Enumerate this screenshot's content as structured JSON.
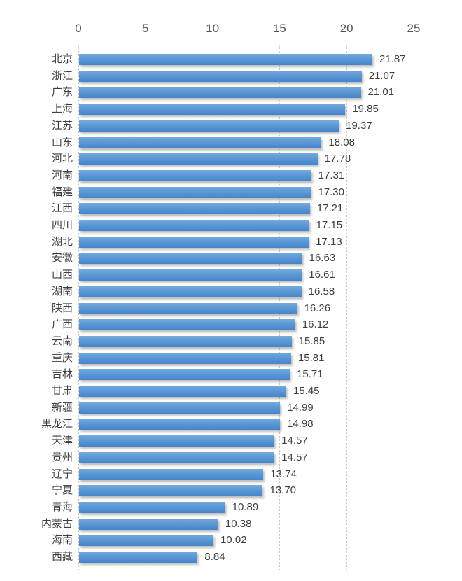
{
  "chart_data": {
    "type": "bar",
    "orientation": "horizontal",
    "title": "",
    "xlabel": "",
    "ylabel": "",
    "xlim": [
      0,
      25
    ],
    "x_ticks": [
      "0",
      "5",
      "10",
      "15",
      "20",
      "25"
    ],
    "x_tick_values": [
      0,
      5,
      10,
      15,
      20,
      25
    ],
    "grid": "vertical-dotted",
    "legend": "none",
    "categories": [
      "北京",
      "浙江",
      "广东",
      "上海",
      "江苏",
      "山东",
      "河北",
      "河南",
      "福建",
      "江西",
      "四川",
      "湖北",
      "安徽",
      "山西",
      "湖南",
      "陕西",
      "广西",
      "云南",
      "重庆",
      "吉林",
      "甘肃",
      "新疆",
      "黑龙江",
      "天津",
      "贵州",
      "辽宁",
      "宁夏",
      "青海",
      "内蒙古",
      "海南",
      "西藏"
    ],
    "values": [
      21.87,
      21.07,
      21.01,
      19.85,
      19.37,
      18.08,
      17.78,
      17.31,
      17.3,
      17.21,
      17.15,
      17.13,
      16.63,
      16.61,
      16.58,
      16.26,
      16.12,
      15.85,
      15.81,
      15.71,
      15.45,
      14.99,
      14.98,
      14.57,
      14.57,
      13.74,
      13.7,
      10.89,
      10.38,
      10.02,
      8.84
    ],
    "value_labels": [
      "21.87",
      "21.07",
      "21.01",
      "19.85",
      "19.37",
      "18.08",
      "17.78",
      "17.31",
      "17.30",
      "17.21",
      "17.15",
      "17.13",
      "16.63",
      "16.61",
      "16.58",
      "16.26",
      "16.12",
      "15.85",
      "15.81",
      "15.71",
      "15.45",
      "14.99",
      "14.98",
      "14.57",
      "14.57",
      "13.74",
      "13.70",
      "10.89",
      "10.38",
      "10.02",
      "8.84"
    ],
    "colors": {
      "bar_gradient_top": "#74a9dd",
      "bar_gradient_bottom": "#4585cb",
      "bar_shadow": "rgba(110,110,110,0.45)",
      "gridline": "#c8c8c8",
      "category_text": "#3f3f3f",
      "value_text": "#3f3f3f",
      "axis_text": "#545454",
      "background": "#ffffff"
    }
  }
}
